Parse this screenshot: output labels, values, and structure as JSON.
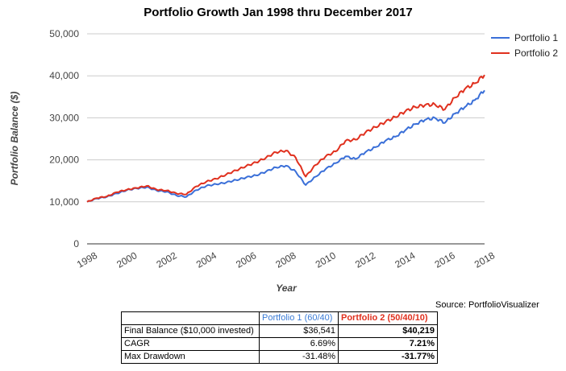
{
  "chart_data": {
    "type": "line",
    "title": "Portfolio Growth Jan 1998 thru December 2017",
    "xlabel": "Year",
    "ylabel": "Portfolio Balance ($)",
    "xlim": [
      1998,
      2018
    ],
    "ylim": [
      0,
      50000
    ],
    "x_ticks": [
      "1998",
      "2000",
      "2002",
      "2004",
      "2006",
      "2008",
      "2010",
      "2012",
      "2014",
      "2016",
      "2018"
    ],
    "y_ticks": [
      "0",
      "10,000",
      "20,000",
      "30,000",
      "40,000",
      "50,000"
    ],
    "grid": true,
    "legend_position": "top-right",
    "x": [
      1998,
      1998.5,
      1999,
      1999.5,
      2000,
      2000.5,
      2001,
      2001.5,
      2002,
      2002.5,
      2003,
      2003.5,
      2004,
      2004.5,
      2005,
      2005.5,
      2006,
      2006.5,
      2007,
      2007.5,
      2008,
      2008.5,
      2009,
      2009.5,
      2010,
      2010.5,
      2011,
      2011.5,
      2012,
      2012.5,
      2013,
      2013.5,
      2014,
      2014.5,
      2015,
      2015.5,
      2016,
      2016.5,
      2017,
      2017.5,
      2018
    ],
    "series": [
      {
        "name": "Portfolio 1",
        "color": "#3a6fd8",
        "values": [
          10000,
          10800,
          11200,
          12000,
          12800,
          13200,
          13500,
          12700,
          12400,
          11500,
          11200,
          12800,
          13800,
          14200,
          14600,
          15200,
          15800,
          16300,
          17200,
          18200,
          18600,
          17200,
          14000,
          16000,
          17800,
          19200,
          20800,
          20200,
          21800,
          23000,
          24500,
          25500,
          27000,
          28500,
          29500,
          30000,
          28800,
          31000,
          32500,
          34200,
          36541
        ]
      },
      {
        "name": "Portfolio 2",
        "color": "#e0301e",
        "values": [
          10000,
          10900,
          11300,
          12300,
          12900,
          13300,
          13800,
          12900,
          12700,
          12000,
          11800,
          13700,
          14800,
          15500,
          16500,
          17500,
          18500,
          19400,
          20500,
          21800,
          22200,
          20500,
          16000,
          18800,
          20800,
          22000,
          24500,
          24800,
          26500,
          27800,
          29000,
          30200,
          31500,
          32600,
          33000,
          33200,
          32000,
          34800,
          36800,
          38200,
          40219
        ]
      }
    ]
  },
  "source": "Source: PortfolioVisualizer",
  "stats_table": {
    "col1_header": "Portfolio 1 (60/40)",
    "col2_header": "Portfolio 2 (50/40/10)",
    "rows": [
      {
        "label": "Final Balance ($10,000 invested)",
        "p1": "$36,541",
        "p2": "$40,219"
      },
      {
        "label": "CAGR",
        "p1": "6.69%",
        "p2": "7.21%"
      },
      {
        "label": "Max Drawdown",
        "p1": "-31.48%",
        "p2": "-31.77%"
      }
    ]
  }
}
